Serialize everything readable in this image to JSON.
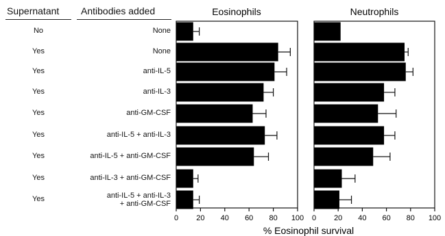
{
  "headers": {
    "supernatant": "Supernatant",
    "antibodies": "Antibodies added"
  },
  "rows": [
    {
      "supernatant": "No",
      "antibodies": [
        "None"
      ]
    },
    {
      "supernatant": "Yes",
      "antibodies": [
        "None"
      ]
    },
    {
      "supernatant": "Yes",
      "antibodies": [
        "anti-IL-5"
      ]
    },
    {
      "supernatant": "Yes",
      "antibodies": [
        "anti-IL-3"
      ]
    },
    {
      "supernatant": "Yes",
      "antibodies": [
        "anti-GM-CSF"
      ]
    },
    {
      "supernatant": "Yes",
      "antibodies": [
        "anti-IL-5 + anti-IL-3"
      ]
    },
    {
      "supernatant": "Yes",
      "antibodies": [
        "anti-IL-5 + anti-GM-CSF"
      ]
    },
    {
      "supernatant": "Yes",
      "antibodies": [
        "anti-IL-3 + anti-GM-CSF"
      ]
    },
    {
      "supernatant": "Yes",
      "antibodies": [
        "anti-IL-5 + anti-IL-3",
        "+ anti-GM-CSF"
      ]
    }
  ],
  "chart_data": [
    {
      "type": "bar",
      "orientation": "horizontal",
      "title": "Eosinophils",
      "categories": [
        "None",
        "None",
        "anti-IL-5",
        "anti-IL-3",
        "anti-GM-CSF",
        "anti-IL-5 + anti-IL-3",
        "anti-IL-5 + anti-GM-CSF",
        "anti-IL-3 + anti-GM-CSF",
        "anti-IL-5 + anti-IL-3 + anti-GM-CSF"
      ],
      "values": [
        14,
        84,
        81,
        72,
        63,
        73,
        64,
        14,
        14
      ],
      "errors": [
        5,
        10,
        10,
        8,
        11,
        10,
        12,
        4,
        5
      ],
      "xlim": [
        0,
        100
      ],
      "xticks": [
        0,
        20,
        40,
        60,
        80,
        100
      ],
      "xlabel": "% Eosinophil survival",
      "bar_color": "#000000"
    },
    {
      "type": "bar",
      "orientation": "horizontal",
      "title": "Neutrophils",
      "categories": [
        "None",
        "None",
        "anti-IL-5",
        "anti-IL-3",
        "anti-GM-CSF",
        "anti-IL-5 + anti-IL-3",
        "anti-IL-5 + anti-GM-CSF",
        "anti-IL-3 + anti-GM-CSF",
        "anti-IL-5 + anti-IL-3 + anti-GM-CSF"
      ],
      "values": [
        22,
        75,
        76,
        58,
        53,
        58,
        49,
        23,
        21
      ],
      "errors": [
        0,
        3,
        6,
        9,
        15,
        9,
        14,
        11,
        10
      ],
      "xlim": [
        0,
        100
      ],
      "xticks": [
        0,
        20,
        40,
        60,
        80,
        100
      ],
      "xlabel": "",
      "bar_color": "#000000"
    }
  ]
}
